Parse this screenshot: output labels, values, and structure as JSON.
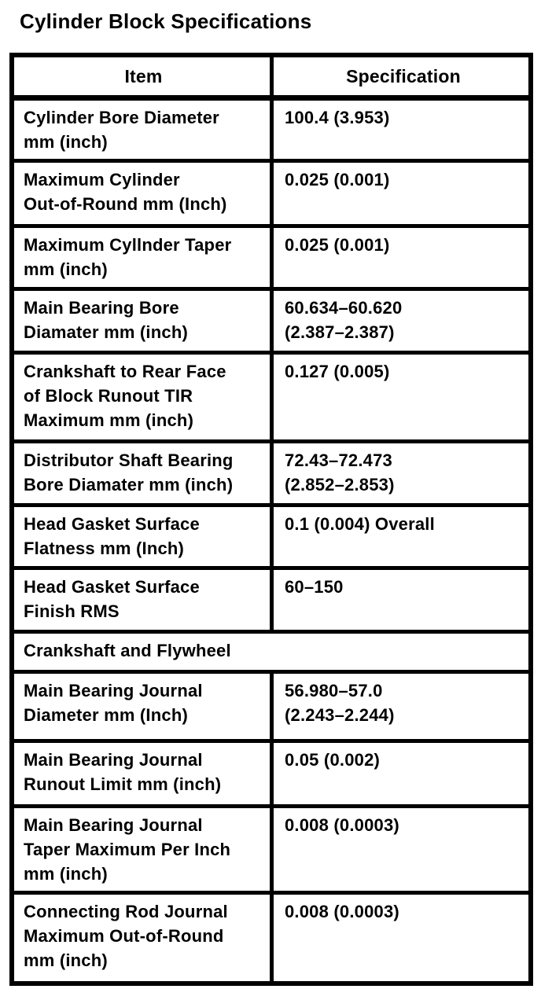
{
  "page_title": "Cylinder Block Specifications",
  "table": {
    "columns": [
      "Item",
      "Specification"
    ],
    "section_label": "Crankshaft and Flywheel",
    "rows": [
      {
        "item": "Cylinder Bore Diameter\nmm (inch)",
        "spec": "100.4 (3.953)"
      },
      {
        "item": "Maximum Cylinder\nOut-of-Round mm (Inch)",
        "spec": "0.025 (0.001)"
      },
      {
        "item": "Maximum Cyllnder Taper\nmm (inch)",
        "spec": "0.025 (0.001)"
      },
      {
        "item": "Main Bearing Bore\nDiamater mm (inch)",
        "spec": "60.634–60.620\n(2.387–2.387)"
      },
      {
        "item": "Crankshaft to Rear Face\nof Block Runout TIR\nMaximum mm (inch)",
        "spec": "0.127 (0.005)"
      },
      {
        "item": "Distributor Shaft Bearing\nBore Diamater mm (inch)",
        "spec": "72.43–72.473\n(2.852–2.853)"
      },
      {
        "item": "Head Gasket Surface\nFlatness mm (Inch)",
        "spec": "0.1 (0.004) Overall"
      },
      {
        "item": "Head Gasket Surface\nFinish RMS",
        "spec": "60–150"
      },
      {
        "item": "Main Bearing Journal\nDiameter mm (Inch)",
        "spec": "56.980–57.0\n(2.243–2.244)"
      },
      {
        "item": "Main Bearing Journal\nRunout Limit mm (inch)",
        "spec": "0.05 (0.002)"
      },
      {
        "item": "Main Bearing Journal\nTaper Maximum Per Inch\nmm (inch)",
        "spec": "0.008 (0.0003)"
      },
      {
        "item": "Connecting Rod Journal\nMaximum Out-of-Round\nmm (inch)",
        "spec": "0.008 (0.0003)"
      }
    ]
  }
}
